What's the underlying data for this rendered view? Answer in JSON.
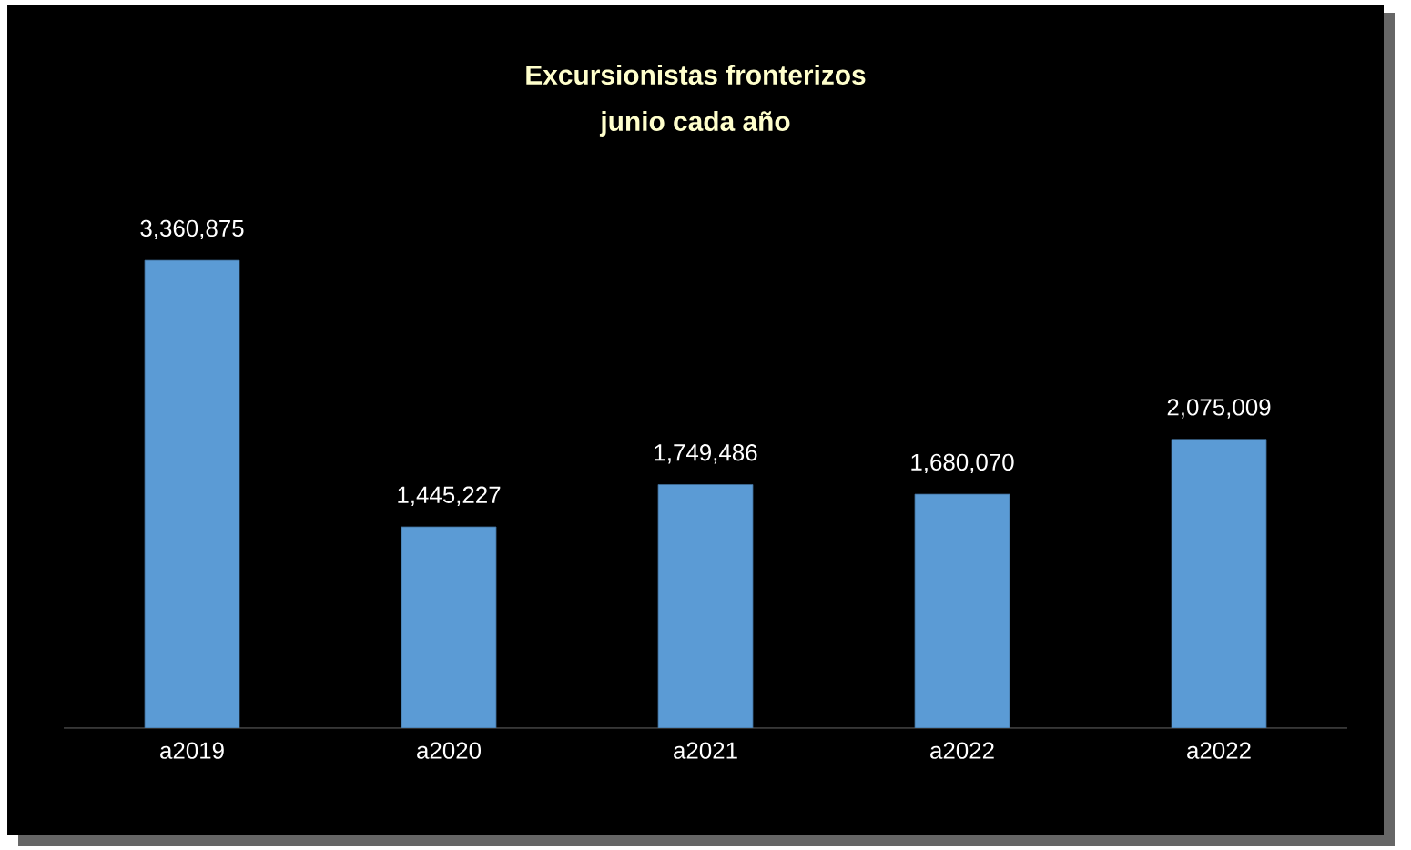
{
  "chart_data": {
    "type": "bar",
    "title": "Excursionistas fronterizos",
    "subtitle": "junio cada año",
    "categories": [
      "a2019",
      "a2020",
      "a2021",
      "a2022",
      "a2022"
    ],
    "values": [
      3360875,
      1445227,
      1749486,
      1680070,
      2075009
    ],
    "value_labels": [
      "3,360,875",
      "1,445,227",
      "1,749,486",
      "1,680,070",
      "2,075,009"
    ],
    "color": "#5b9bd5"
  }
}
